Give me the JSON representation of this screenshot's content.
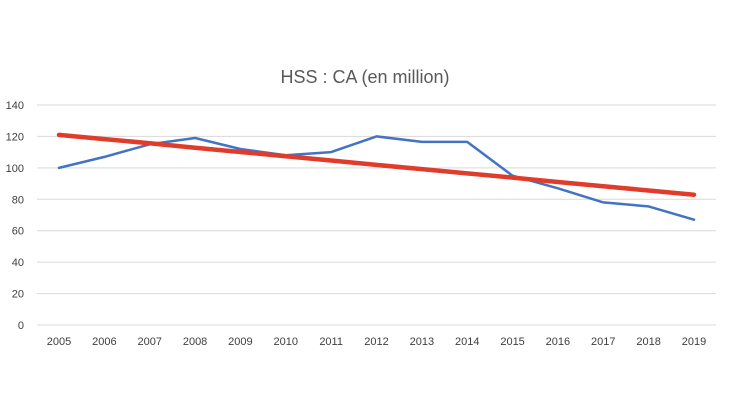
{
  "chart_data": {
    "type": "line",
    "title": "HSS : CA (en million)",
    "xlabel": "",
    "ylabel": "",
    "categories": [
      "2005",
      "2006",
      "2007",
      "2008",
      "2009",
      "2010",
      "2011",
      "2012",
      "2013",
      "2014",
      "2015",
      "2016",
      "2017",
      "2018",
      "2019"
    ],
    "series": [
      {
        "color": "#4472c4",
        "values": [
          100,
          107,
          115,
          119,
          112,
          108,
          110,
          120,
          116.5,
          116.5,
          95,
          87,
          78,
          75.5,
          67
        ]
      },
      {
        "color": "#e03c2c",
        "values": [
          121,
          118.3,
          115.6,
          112.8,
          110.1,
          107.4,
          104.7,
          101.9,
          99.2,
          96.5,
          93.8,
          91.0,
          88.3,
          85.6,
          82.9
        ]
      }
    ],
    "ylim": [
      0,
      140
    ],
    "yticks": [
      0,
      20,
      40,
      60,
      80,
      100,
      120,
      140
    ],
    "grid": true,
    "legend": "none"
  }
}
